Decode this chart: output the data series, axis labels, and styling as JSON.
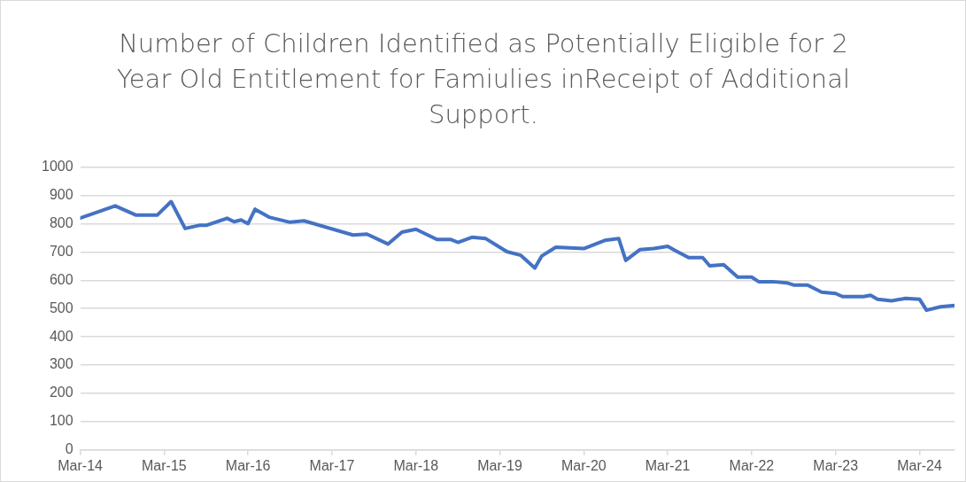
{
  "chart_data": {
    "type": "line",
    "title": "Number of Children Identified as Potentially Eligible for 2 Year Old Entitlement for Famiulies inReceipt of Additional Support.",
    "x": [
      "2014-03",
      "2014-08",
      "2014-11",
      "2015-02",
      "2015-04",
      "2015-06",
      "2015-08",
      "2015-09",
      "2015-12",
      "2016-01",
      "2016-02",
      "2016-03",
      "2016-04",
      "2016-06",
      "2016-09",
      "2016-11",
      "2017-06",
      "2017-08",
      "2017-11",
      "2018-01",
      "2018-03",
      "2018-06",
      "2018-08",
      "2018-09",
      "2018-11",
      "2019-01",
      "2019-04",
      "2019-06",
      "2019-08",
      "2019-09",
      "2019-11",
      "2020-03",
      "2020-06",
      "2020-08",
      "2020-09",
      "2020-11",
      "2021-01",
      "2021-03",
      "2021-04",
      "2021-06",
      "2021-08",
      "2021-09",
      "2021-11",
      "2022-01",
      "2022-03",
      "2022-04",
      "2022-06",
      "2022-08",
      "2022-09",
      "2022-11",
      "2023-01",
      "2023-03",
      "2023-04",
      "2023-07",
      "2023-08",
      "2023-09",
      "2023-11",
      "2024-01",
      "2024-03",
      "2024-04",
      "2024-06",
      "2024-08"
    ],
    "series": [
      {
        "color": "#4472c4",
        "values": [
          820,
          863,
          830,
          830,
          878,
          783,
          794,
          794,
          819,
          807,
          813,
          800,
          851,
          823,
          805,
          810,
          760,
          763,
          728,
          770,
          780,
          744,
          744,
          734,
          752,
          747,
          701,
          688,
          643,
          686,
          717,
          712,
          741,
          747,
          670,
          708,
          712,
          720,
          706,
          680,
          680,
          651,
          655,
          611,
          611,
          595,
          595,
          591,
          583,
          583,
          558,
          553,
          542,
          542,
          547,
          533,
          527,
          536,
          533,
          494,
          506,
          511
        ]
      }
    ],
    "xlim": [
      "2014-03",
      "2024-08"
    ],
    "xticks": [
      {
        "value": "2014-03",
        "label": "Mar-14"
      },
      {
        "value": "2015-03",
        "label": "Mar-15"
      },
      {
        "value": "2016-03",
        "label": "Mar-16"
      },
      {
        "value": "2017-03",
        "label": "Mar-17"
      },
      {
        "value": "2018-03",
        "label": "Mar-18"
      },
      {
        "value": "2019-03",
        "label": "Mar-19"
      },
      {
        "value": "2020-03",
        "label": "Mar-20"
      },
      {
        "value": "2021-03",
        "label": "Mar-21"
      },
      {
        "value": "2022-03",
        "label": "Mar-22"
      },
      {
        "value": "2023-03",
        "label": "Mar-23"
      },
      {
        "value": "2024-03",
        "label": "Mar-24"
      }
    ],
    "ylim": [
      0,
      1000
    ],
    "yticks": [
      0,
      100,
      200,
      300,
      400,
      500,
      600,
      700,
      800,
      900,
      1000
    ],
    "grid": "y",
    "marker": "none",
    "line_style": "solid",
    "legend": false
  }
}
